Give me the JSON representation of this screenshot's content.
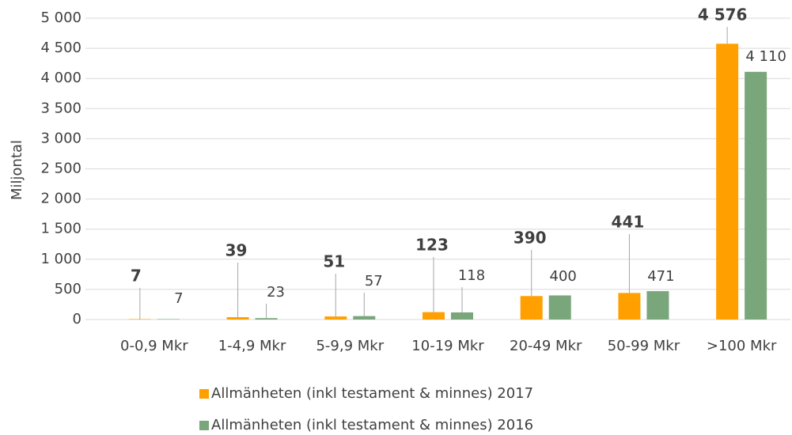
{
  "chart_data": {
    "type": "bar",
    "y_label": "Miljontal",
    "categories": [
      "0-0,9 Mkr",
      "1-4,9 Mkr",
      "5-9,9 Mkr",
      "10-19 Mkr",
      "20-49 Mkr",
      "50-99 Mkr",
      ">100 Mkr"
    ],
    "series": [
      {
        "name": "Allmänheten (inkl testament & minnes) 2017",
        "color": "#ffa000",
        "values": [
          7,
          39,
          51,
          123,
          390,
          441,
          4576
        ],
        "value_labels": [
          "7",
          "39",
          "51",
          "123",
          "390",
          "441",
          "4 576"
        ]
      },
      {
        "name": "Allmänheten (inkl testament & minnes) 2016",
        "color": "#79a67a",
        "values": [
          7,
          23,
          57,
          118,
          400,
          471,
          4110
        ],
        "value_labels": [
          "7",
          "23",
          "57",
          "118",
          "400",
          "471",
          "4 110"
        ]
      }
    ],
    "ylim": [
      0,
      5000
    ],
    "yticks": [
      0,
      500,
      {
        "value": 1000,
        "label": "1 000"
      },
      {
        "value": 1500,
        "label": "1 500"
      },
      {
        "value": 2000,
        "label": "2 000"
      },
      {
        "value": 2500,
        "label": "2 500"
      },
      {
        "value": 3000,
        "label": "3 000"
      },
      {
        "value": 3500,
        "label": "3 500"
      },
      {
        "value": 4000,
        "label": "4 000"
      },
      {
        "value": 4500,
        "label": "4 500"
      },
      {
        "value": 5000,
        "label": "5 000"
      }
    ],
    "grid": true
  }
}
